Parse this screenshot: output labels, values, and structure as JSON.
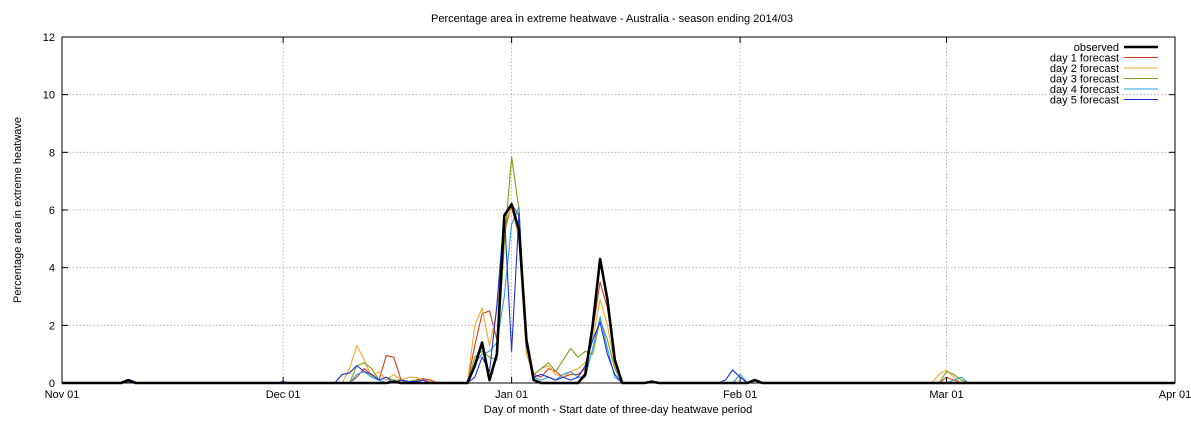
{
  "chart_data": {
    "type": "line",
    "title": "Percentage area in extreme heatwave - Australia - season ending 2014/03",
    "xlabel": "Day of month - Start date of three-day heatwave period",
    "ylabel": "Percentage area in extreme heatwave",
    "ylim": [
      0,
      12
    ],
    "yticks": [
      0,
      2,
      4,
      6,
      8,
      10,
      12
    ],
    "xlim": [
      "2013-11-01",
      "2014-04-01"
    ],
    "xticks": [
      "2013-11-01",
      "2013-12-01",
      "2014-01-01",
      "2014-02-01",
      "2014-03-01",
      "2014-04-01"
    ],
    "xtick_labels": [
      "Nov 01",
      "Dec 01",
      "Jan 01",
      "Feb 01",
      "Mar 01",
      "Apr 01"
    ],
    "grid": true,
    "legend_position": "top-right",
    "series": [
      {
        "name": "observed",
        "color": "#000000",
        "points": [
          [
            "2013-11-01",
            0
          ],
          [
            "2013-11-09",
            0
          ],
          [
            "2013-11-10",
            0.1
          ],
          [
            "2013-11-11",
            0
          ],
          [
            "2013-12-15",
            0
          ],
          [
            "2013-12-16",
            0.05
          ],
          [
            "2013-12-17",
            0
          ],
          [
            "2013-12-26",
            0
          ],
          [
            "2013-12-27",
            0.6
          ],
          [
            "2013-12-28",
            1.4
          ],
          [
            "2013-12-29",
            0.1
          ],
          [
            "2013-12-30",
            1.0
          ],
          [
            "2013-12-31",
            5.8
          ],
          [
            "2014-01-01",
            6.2
          ],
          [
            "2014-01-02",
            5.3
          ],
          [
            "2014-01-03",
            1.5
          ],
          [
            "2014-01-04",
            0.1
          ],
          [
            "2014-01-05",
            0
          ],
          [
            "2014-01-10",
            0
          ],
          [
            "2014-01-11",
            0.3
          ],
          [
            "2014-01-12",
            2.0
          ],
          [
            "2014-01-13",
            4.3
          ],
          [
            "2014-01-14",
            2.9
          ],
          [
            "2014-01-15",
            0.8
          ],
          [
            "2014-01-16",
            0
          ],
          [
            "2014-01-19",
            0
          ],
          [
            "2014-01-20",
            0.05
          ],
          [
            "2014-01-21",
            0
          ],
          [
            "2014-02-02",
            0
          ],
          [
            "2014-02-03",
            0.1
          ],
          [
            "2014-02-04",
            0
          ],
          [
            "2014-04-01",
            0
          ]
        ]
      },
      {
        "name": "day 1 forecast",
        "color": "#d23c1e",
        "points": [
          [
            "2013-11-01",
            0
          ],
          [
            "2013-12-10",
            0
          ],
          [
            "2013-12-11",
            0.2
          ],
          [
            "2013-12-12",
            0.5
          ],
          [
            "2013-12-13",
            0.3
          ],
          [
            "2013-12-14",
            0.1
          ],
          [
            "2013-12-15",
            0.95
          ],
          [
            "2013-12-16",
            0.9
          ],
          [
            "2013-12-17",
            0.1
          ],
          [
            "2013-12-18",
            0
          ],
          [
            "2013-12-19",
            0.1
          ],
          [
            "2013-12-20",
            0.15
          ],
          [
            "2013-12-21",
            0.1
          ],
          [
            "2013-12-22",
            0
          ],
          [
            "2013-12-26",
            0
          ],
          [
            "2013-12-27",
            1.3
          ],
          [
            "2013-12-28",
            2.4
          ],
          [
            "2013-12-29",
            2.5
          ],
          [
            "2013-12-30",
            1.5
          ],
          [
            "2013-12-31",
            5.2
          ],
          [
            "2014-01-01",
            6.2
          ],
          [
            "2014-01-02",
            5.8
          ],
          [
            "2014-01-03",
            1.6
          ],
          [
            "2014-01-04",
            0.3
          ],
          [
            "2014-01-05",
            0.2
          ],
          [
            "2014-01-06",
            0.5
          ],
          [
            "2014-01-07",
            0.4
          ],
          [
            "2014-01-08",
            0.2
          ],
          [
            "2014-01-09",
            0.3
          ],
          [
            "2014-01-10",
            0.3
          ],
          [
            "2014-01-11",
            0.5
          ],
          [
            "2014-01-12",
            1.8
          ],
          [
            "2014-01-13",
            3.5
          ],
          [
            "2014-01-14",
            2.6
          ],
          [
            "2014-01-15",
            0.9
          ],
          [
            "2014-01-16",
            0
          ],
          [
            "2014-02-28",
            0
          ],
          [
            "2014-03-01",
            0.2
          ],
          [
            "2014-03-02",
            0.1
          ],
          [
            "2014-03-03",
            0
          ],
          [
            "2014-04-01",
            0
          ]
        ]
      },
      {
        "name": "day 2 forecast",
        "color": "#f0a830",
        "points": [
          [
            "2013-11-01",
            0
          ],
          [
            "2013-12-09",
            0
          ],
          [
            "2013-12-10",
            0.5
          ],
          [
            "2013-12-11",
            1.3
          ],
          [
            "2013-12-12",
            0.8
          ],
          [
            "2013-12-13",
            0.2
          ],
          [
            "2013-12-14",
            0.4
          ],
          [
            "2013-12-15",
            0.1
          ],
          [
            "2013-12-16",
            0.3
          ],
          [
            "2013-12-17",
            0.1
          ],
          [
            "2013-12-18",
            0.2
          ],
          [
            "2013-12-19",
            0.2
          ],
          [
            "2013-12-20",
            0.1
          ],
          [
            "2013-12-21",
            0.05
          ],
          [
            "2013-12-22",
            0
          ],
          [
            "2013-12-26",
            0
          ],
          [
            "2013-12-27",
            2.0
          ],
          [
            "2013-12-28",
            2.6
          ],
          [
            "2013-12-29",
            1.3
          ],
          [
            "2013-12-30",
            2.5
          ],
          [
            "2013-12-31",
            5.5
          ],
          [
            "2014-01-01",
            6.1
          ],
          [
            "2014-01-02",
            5.0
          ],
          [
            "2014-01-03",
            1.0
          ],
          [
            "2014-01-04",
            0.3
          ],
          [
            "2014-01-05",
            0.5
          ],
          [
            "2014-01-06",
            0.6
          ],
          [
            "2014-01-07",
            0.3
          ],
          [
            "2014-01-08",
            0.2
          ],
          [
            "2014-01-09",
            0.4
          ],
          [
            "2014-01-10",
            0.5
          ],
          [
            "2014-01-11",
            0.7
          ],
          [
            "2014-01-12",
            1.5
          ],
          [
            "2014-01-13",
            2.9
          ],
          [
            "2014-01-14",
            2.0
          ],
          [
            "2014-01-15",
            0.6
          ],
          [
            "2014-01-16",
            0
          ],
          [
            "2014-02-27",
            0
          ],
          [
            "2014-02-28",
            0.3
          ],
          [
            "2014-03-01",
            0.45
          ],
          [
            "2014-03-02",
            0.2
          ],
          [
            "2014-03-03",
            0
          ],
          [
            "2014-04-01",
            0
          ]
        ]
      },
      {
        "name": "day 3 forecast",
        "color": "#7aa21e",
        "points": [
          [
            "2013-11-01",
            0
          ],
          [
            "2013-12-10",
            0
          ],
          [
            "2013-12-11",
            0.6
          ],
          [
            "2013-12-12",
            0.7
          ],
          [
            "2013-12-13",
            0.5
          ],
          [
            "2013-12-14",
            0.1
          ],
          [
            "2013-12-15",
            0.2
          ],
          [
            "2013-12-16",
            0.1
          ],
          [
            "2013-12-17",
            0.1
          ],
          [
            "2013-12-18",
            0.05
          ],
          [
            "2013-12-19",
            0.1
          ],
          [
            "2013-12-20",
            0
          ],
          [
            "2013-12-26",
            0
          ],
          [
            "2013-12-27",
            0.9
          ],
          [
            "2013-12-28",
            1.1
          ],
          [
            "2013-12-29",
            0.9
          ],
          [
            "2013-12-30",
            0.8
          ],
          [
            "2013-12-31",
            4.8
          ],
          [
            "2014-01-01",
            7.85
          ],
          [
            "2014-01-02",
            6.0
          ],
          [
            "2014-01-03",
            1.2
          ],
          [
            "2014-01-04",
            0.3
          ],
          [
            "2014-01-05",
            0.5
          ],
          [
            "2014-01-06",
            0.7
          ],
          [
            "2014-01-07",
            0.4
          ],
          [
            "2014-01-08",
            0.8
          ],
          [
            "2014-01-09",
            1.2
          ],
          [
            "2014-01-10",
            0.9
          ],
          [
            "2014-01-11",
            1.1
          ],
          [
            "2014-01-12",
            1.0
          ],
          [
            "2014-01-13",
            2.2
          ],
          [
            "2014-01-14",
            1.5
          ],
          [
            "2014-01-15",
            0.5
          ],
          [
            "2014-01-16",
            0
          ],
          [
            "2014-02-28",
            0
          ],
          [
            "2014-03-01",
            0.4
          ],
          [
            "2014-03-02",
            0.3
          ],
          [
            "2014-03-03",
            0.1
          ],
          [
            "2014-03-04",
            0
          ],
          [
            "2014-04-01",
            0
          ]
        ]
      },
      {
        "name": "day 4 forecast",
        "color": "#2a9fd8",
        "points": [
          [
            "2013-11-01",
            0
          ],
          [
            "2013-12-10",
            0
          ],
          [
            "2013-12-11",
            0.3
          ],
          [
            "2013-12-12",
            0.4
          ],
          [
            "2013-12-13",
            0.2
          ],
          [
            "2013-12-14",
            0.1
          ],
          [
            "2013-12-15",
            0
          ],
          [
            "2013-12-26",
            0
          ],
          [
            "2013-12-27",
            0.7
          ],
          [
            "2013-12-28",
            1.0
          ],
          [
            "2013-12-29",
            1.1
          ],
          [
            "2013-12-30",
            1.4
          ],
          [
            "2013-12-31",
            3.0
          ],
          [
            "2014-01-01",
            5.5
          ],
          [
            "2014-01-02",
            6.1
          ],
          [
            "2014-01-03",
            1.4
          ],
          [
            "2014-01-04",
            0.2
          ],
          [
            "2014-01-05",
            0.1
          ],
          [
            "2014-01-06",
            0.2
          ],
          [
            "2014-01-07",
            0.1
          ],
          [
            "2014-01-08",
            0.3
          ],
          [
            "2014-01-09",
            0.4
          ],
          [
            "2014-01-10",
            0.2
          ],
          [
            "2014-01-11",
            0.2
          ],
          [
            "2014-01-12",
            1.2
          ],
          [
            "2014-01-13",
            2.3
          ],
          [
            "2014-01-14",
            1.2
          ],
          [
            "2014-01-15",
            0.2
          ],
          [
            "2014-01-16",
            0
          ],
          [
            "2014-01-31",
            0
          ],
          [
            "2014-02-01",
            0.3
          ],
          [
            "2014-02-02",
            0
          ],
          [
            "2014-03-01",
            0
          ],
          [
            "2014-03-02",
            0.1
          ],
          [
            "2014-03-03",
            0.2
          ],
          [
            "2014-03-04",
            0
          ],
          [
            "2014-04-01",
            0
          ]
        ]
      },
      {
        "name": "day 5 forecast",
        "color": "#2030d8",
        "points": [
          [
            "2013-11-01",
            0
          ],
          [
            "2013-11-09",
            0
          ],
          [
            "2013-11-10",
            0.05
          ],
          [
            "2013-11-11",
            0
          ],
          [
            "2013-11-30",
            0
          ],
          [
            "2013-12-01",
            0.05
          ],
          [
            "2013-12-02",
            0
          ],
          [
            "2013-12-08",
            0
          ],
          [
            "2013-12-09",
            0.3
          ],
          [
            "2013-12-10",
            0.35
          ],
          [
            "2013-12-11",
            0.6
          ],
          [
            "2013-12-12",
            0.4
          ],
          [
            "2013-12-13",
            0.3
          ],
          [
            "2013-12-14",
            0.1
          ],
          [
            "2013-12-15",
            0.2
          ],
          [
            "2013-12-16",
            0
          ],
          [
            "2013-12-17",
            0.1
          ],
          [
            "2013-12-18",
            0.05
          ],
          [
            "2013-12-19",
            0.05
          ],
          [
            "2013-12-20",
            0.1
          ],
          [
            "2013-12-21",
            0
          ],
          [
            "2013-12-26",
            0
          ],
          [
            "2013-12-27",
            0.2
          ],
          [
            "2013-12-28",
            0.9
          ],
          [
            "2013-12-29",
            0.4
          ],
          [
            "2013-12-30",
            2.7
          ],
          [
            "2013-12-31",
            5.9
          ],
          [
            "2014-01-01",
            1.1
          ],
          [
            "2014-01-02",
            5.9
          ],
          [
            "2014-01-03",
            1.3
          ],
          [
            "2014-01-04",
            0.2
          ],
          [
            "2014-01-05",
            0.3
          ],
          [
            "2014-01-06",
            0.2
          ],
          [
            "2014-01-07",
            0.1
          ],
          [
            "2014-01-08",
            0.2
          ],
          [
            "2014-01-09",
            0.1
          ],
          [
            "2014-01-10",
            0.2
          ],
          [
            "2014-01-11",
            0.6
          ],
          [
            "2014-01-12",
            1.5
          ],
          [
            "2014-01-13",
            2.1
          ],
          [
            "2014-01-14",
            1.0
          ],
          [
            "2014-01-15",
            0.3
          ],
          [
            "2014-01-16",
            0
          ],
          [
            "2014-01-29",
            0
          ],
          [
            "2014-01-30",
            0.1
          ],
          [
            "2014-01-31",
            0.45
          ],
          [
            "2014-02-01",
            0.2
          ],
          [
            "2014-02-02",
            0
          ],
          [
            "2014-04-01",
            0
          ]
        ]
      }
    ]
  }
}
